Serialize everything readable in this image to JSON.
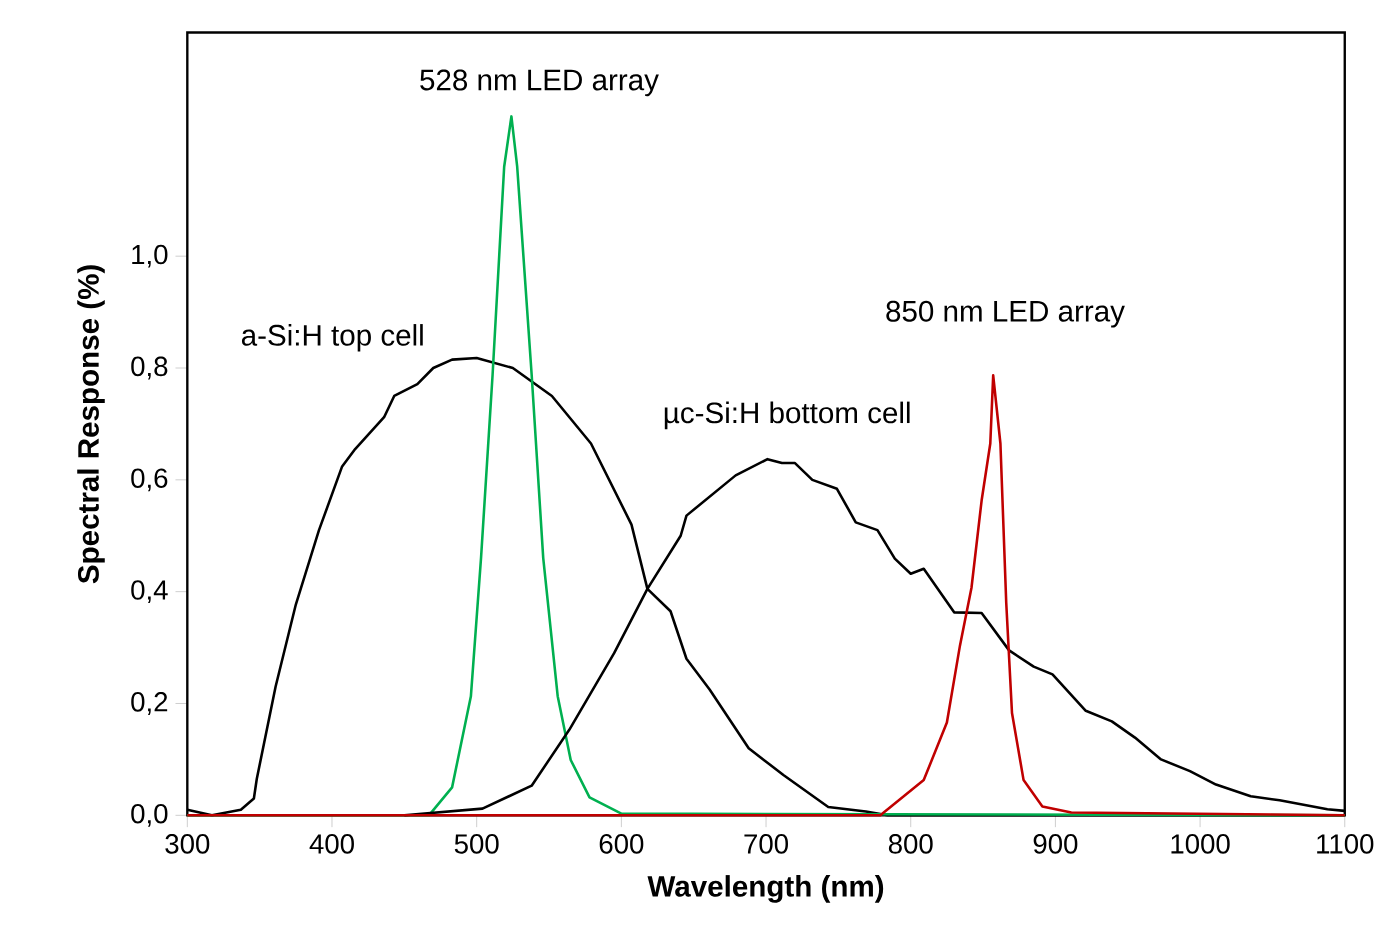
{
  "chart_data": {
    "type": "line",
    "xlabel": "Wavelength (nm)",
    "ylabel": "Spectral Response (%)",
    "xlim": [
      300,
      1100
    ],
    "ylim": [
      0,
      1.4
    ],
    "xticks": [
      300,
      400,
      500,
      600,
      700,
      800,
      900,
      1000,
      1100
    ],
    "yticks": [
      {
        "value": 0,
        "label": "0,0"
      },
      {
        "value": 0.2,
        "label": "0,2"
      },
      {
        "value": 0.4,
        "label": "0,4"
      },
      {
        "value": 0.6,
        "label": "0,6"
      },
      {
        "value": 0.8,
        "label": "0,8"
      },
      {
        "value": 1.0,
        "label": "1,0"
      }
    ],
    "line_style": "solid",
    "marker": "none",
    "series": [
      {
        "name": "a-Si:H top cell",
        "color": "#000000",
        "x": [
          300,
          317,
          337,
          346,
          348,
          361,
          375,
          391,
          407,
          416,
          436,
          443,
          459,
          470,
          483,
          500,
          525,
          552,
          579,
          607,
          618,
          634,
          645,
          661,
          688,
          712,
          743,
          769,
          784,
          1100
        ],
        "values": [
          0.01,
          0.0,
          0.01,
          0.03,
          0.065,
          0.23,
          0.377,
          0.51,
          0.624,
          0.655,
          0.712,
          0.75,
          0.771,
          0.8,
          0.815,
          0.818,
          0.8,
          0.75,
          0.665,
          0.52,
          0.405,
          0.365,
          0.28,
          0.225,
          0.12,
          0.072,
          0.015,
          0.007,
          0.0,
          0.0
        ]
      },
      {
        "name": "528 nm LED array",
        "color": "#00b050",
        "x": [
          300,
          467,
          483,
          496,
          503,
          511,
          519,
          524,
          528,
          538,
          546,
          556,
          565,
          578,
          600,
          1100
        ],
        "values": [
          0.0,
          0.0,
          0.05,
          0.213,
          0.46,
          0.788,
          1.16,
          1.25,
          1.16,
          0.788,
          0.46,
          0.213,
          0.099,
          0.032,
          0.003,
          0.0
        ]
      },
      {
        "name": "µc-Si:H bottom cell",
        "color": "#000000",
        "x": [
          450,
          504,
          538,
          564,
          595,
          618,
          641,
          645,
          679,
          701,
          711,
          720,
          732,
          749,
          762,
          777,
          789,
          800,
          809,
          830,
          849,
          868,
          885,
          898,
          921,
          939,
          955,
          973,
          993,
          1011,
          1035,
          1055,
          1088,
          1100
        ],
        "values": [
          0.0,
          0.012,
          0.053,
          0.153,
          0.29,
          0.405,
          0.5,
          0.536,
          0.608,
          0.637,
          0.63,
          0.63,
          0.6,
          0.584,
          0.524,
          0.51,
          0.459,
          0.432,
          0.441,
          0.363,
          0.362,
          0.295,
          0.266,
          0.252,
          0.187,
          0.168,
          0.139,
          0.1,
          0.079,
          0.055,
          0.034,
          0.027,
          0.011,
          0.008
        ]
      },
      {
        "name": "850 nm LED array",
        "color": "#c00000",
        "x": [
          300,
          779,
          809,
          825,
          834,
          842,
          849,
          855,
          857,
          862,
          866,
          870,
          878,
          891,
          911,
          1100
        ],
        "values": [
          0.0,
          0.0,
          0.063,
          0.166,
          0.303,
          0.407,
          0.563,
          0.665,
          0.787,
          0.665,
          0.381,
          0.183,
          0.063,
          0.016,
          0.005,
          0.0
        ]
      }
    ]
  }
}
